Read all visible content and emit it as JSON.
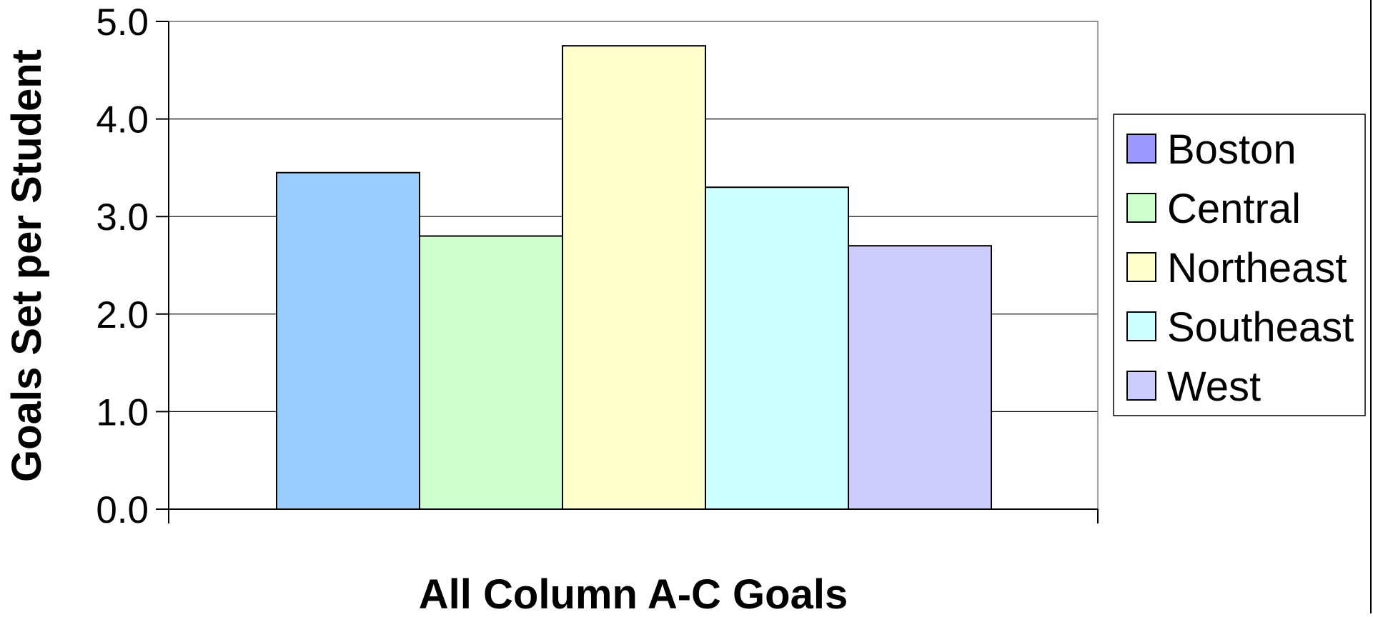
{
  "chart_data": {
    "type": "bar",
    "title": "",
    "xlabel": "All Column A-C Goals",
    "ylabel": "Goals Set per Student",
    "ylim": [
      0,
      5
    ],
    "yticks": [
      0,
      1,
      2,
      3,
      4,
      5
    ],
    "ytick_labels": [
      "0.0",
      "1.0",
      "2.0",
      "3.0",
      "4.0",
      "5.0"
    ],
    "grid": true,
    "legend_position": "right",
    "categories": [
      ""
    ],
    "series": [
      {
        "name": "Boston",
        "values": [
          3.45
        ],
        "color": "#99ccff",
        "legend_color": "#9999ff"
      },
      {
        "name": "Central",
        "values": [
          2.8
        ],
        "color": "#ccffcc",
        "legend_color": "#ccffcc"
      },
      {
        "name": "Northeast",
        "values": [
          4.75
        ],
        "color": "#ffffcc",
        "legend_color": "#ffffcc"
      },
      {
        "name": "Southeast",
        "values": [
          3.3
        ],
        "color": "#ccffff",
        "legend_color": "#ccffff"
      },
      {
        "name": "West",
        "values": [
          2.7
        ],
        "color": "#ccccff",
        "legend_color": "#ccccff"
      }
    ]
  }
}
